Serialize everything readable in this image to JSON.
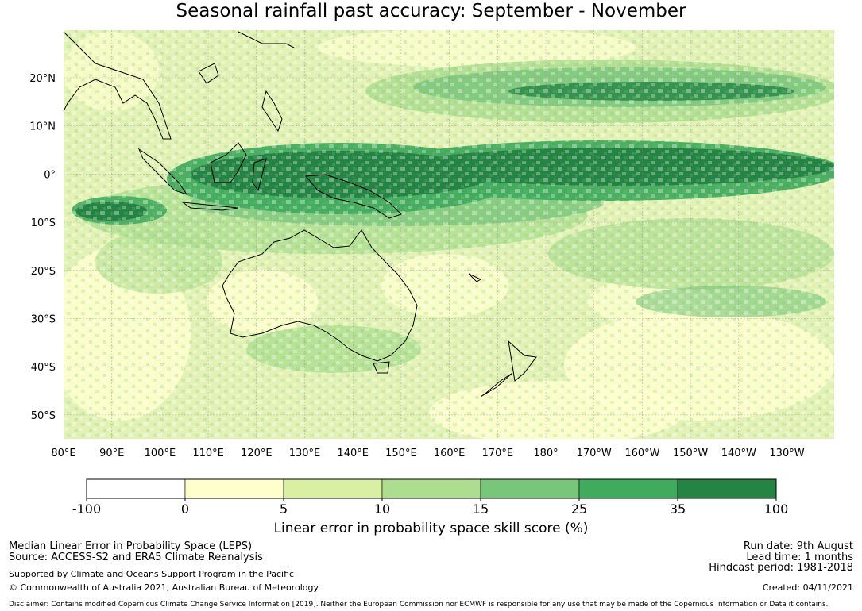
{
  "title": "Seasonal rainfall past accuracy: September - November",
  "map": {
    "lat_ticks": [
      "20°N",
      "10°N",
      "0°",
      "10°S",
      "20°S",
      "30°S",
      "40°S",
      "50°S"
    ],
    "lon_ticks": [
      "80°E",
      "90°E",
      "100°E",
      "110°E",
      "120°E",
      "130°E",
      "140°E",
      "150°E",
      "160°E",
      "170°E",
      "180°",
      "170°W",
      "160°W",
      "150°W",
      "140°W",
      "130°W"
    ]
  },
  "colorbar": {
    "bounds": [
      "-100",
      "0",
      "5",
      "10",
      "15",
      "25",
      "35",
      "100"
    ],
    "colors": [
      "#ffffff",
      "#ffffcc",
      "#d9f0a3",
      "#addd8e",
      "#78c679",
      "#41ab5d",
      "#238443"
    ],
    "label": "Linear error in probability space skill score (%)"
  },
  "footer": {
    "line1": "Median Linear Error in Probability Space (LEPS)",
    "line2": "Source: ACCESS-S2 and ERA5 Climate Reanalysis",
    "line3": "Supported by Climate and Oceans Support Program in the Pacific",
    "line4": "© Commonwealth of Australia 2021, Australian Bureau of Meteorology",
    "run_date": "Run date: 9th August",
    "lead_time": "Lead time: 1 months",
    "hindcast": "Hindcast period: 1981-2018",
    "created": "Created: 04/11/2021",
    "disclaimer": "Disclaimer: Contains modified Copernicus Climate Change Service Information [2019]. Neither the European Commission nor ECMWF is responsible for any use that may be made of the Copernicus Information or Data it contains."
  }
}
